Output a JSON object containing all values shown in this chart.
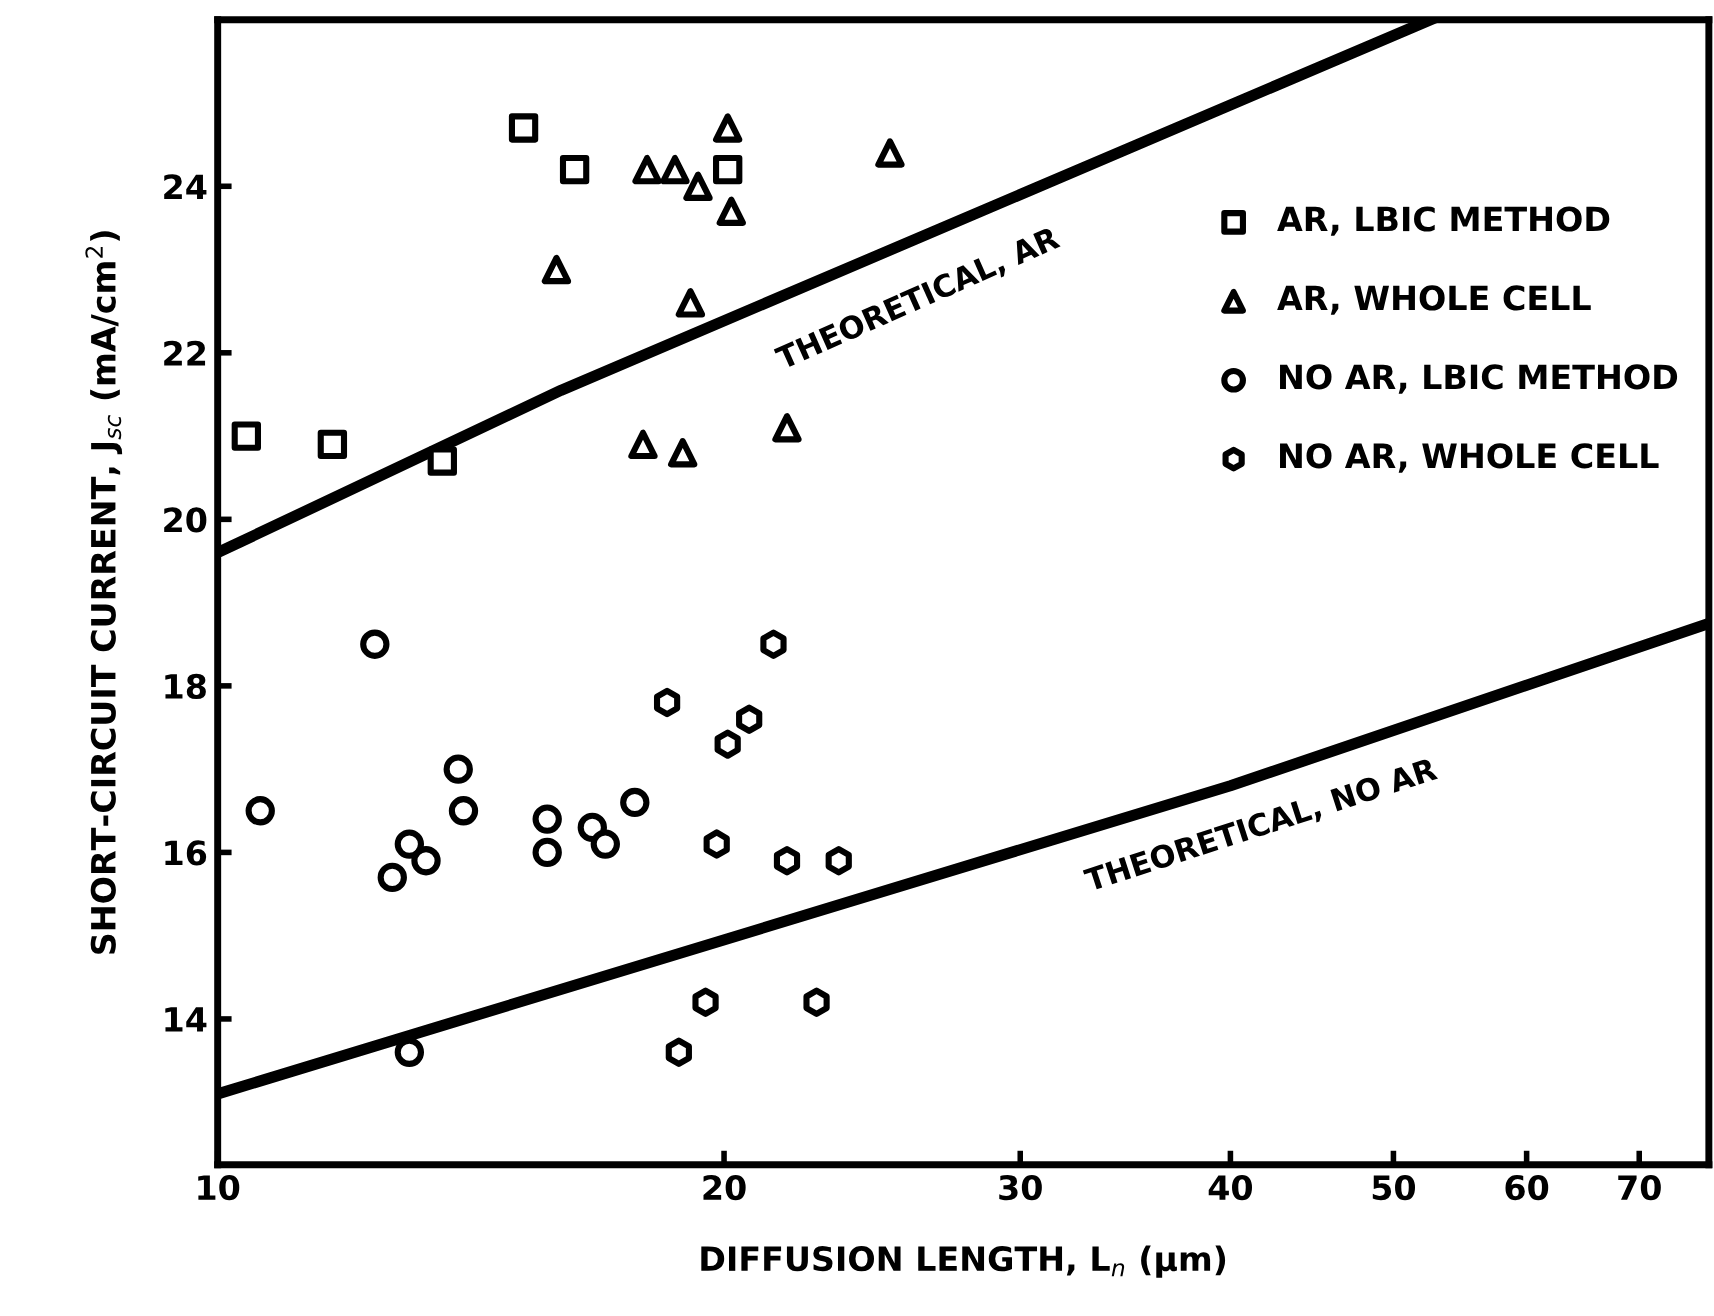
{
  "chart_data": {
    "type": "scatter",
    "xlabel": "DIFFUSION LENGTH, L$_{n}$ (μm)",
    "ylabel": "SHORT-CIRCUIT CURRENT, J$_{sc}$ (mA/cm$^{2}$)",
    "log": "x",
    "xlim": [
      10,
      77
    ],
    "xticks": [
      10,
      20,
      30,
      40,
      50,
      60,
      70
    ],
    "ylim": [
      12.25,
      26
    ],
    "yticks": [
      14,
      16,
      18,
      20,
      22,
      24
    ],
    "grid": false,
    "legend": "right",
    "series": [
      {
        "name": "AR, LBIC METHOD",
        "color": "#000000",
        "marker": "square",
        "x": [
          10.4,
          11.7,
          13.6,
          15.2,
          16.3,
          20.1
        ],
        "values": [
          21.0,
          20.9,
          20.7,
          24.7,
          24.2,
          24.2
        ]
      },
      {
        "name": "AR, WHOLE CELL",
        "color": "#000000",
        "marker": "triangle",
        "x": [
          20.1,
          25.1,
          18.0,
          18.7,
          19.3,
          20.2,
          15.9,
          19.1,
          17.9,
          18.9,
          21.8
        ],
        "values": [
          24.7,
          24.4,
          24.2,
          24.2,
          24.0,
          23.7,
          23.0,
          22.6,
          20.9,
          20.8,
          21.1
        ]
      },
      {
        "name": "NO AR, LBIC METHOD",
        "color": "#000000",
        "marker": "circle",
        "x": [
          10.6,
          12.4,
          12.7,
          13.0,
          13.3,
          13.0,
          13.9,
          14.0,
          15.7,
          15.7,
          16.7,
          17.0,
          17.7
        ],
        "values": [
          16.5,
          18.5,
          15.7,
          16.1,
          15.9,
          13.6,
          17.0,
          16.5,
          16.4,
          16.0,
          16.3,
          16.1,
          16.6
        ]
      },
      {
        "name": "NO AR, WHOLE CELL",
        "color": "#000000",
        "x": [
          18.5,
          18.8,
          19.5,
          19.8,
          20.1,
          20.7,
          21.4,
          21.8,
          22.7,
          23.4
        ],
        "values": [
          17.8,
          13.6,
          14.2,
          16.1,
          17.3,
          17.6,
          18.5,
          15.9,
          14.2,
          15.9
        ]
      },
      {
        "type": "line",
        "color": "#000000",
        "line_style": "solid",
        "x": [
          10,
          16,
          52.6
        ],
        "values": [
          19.6,
          21.55,
          26.0
        ]
      },
      {
        "type": "line",
        "color": "#000000",
        "line_style": "solid",
        "x": [
          10,
          40,
          77
        ],
        "values": [
          13.1,
          16.8,
          18.75
        ]
      }
    ],
    "annotations": [
      "THEORETICAL, AR",
      "THEORETICAL, NO AR"
    ]
  }
}
